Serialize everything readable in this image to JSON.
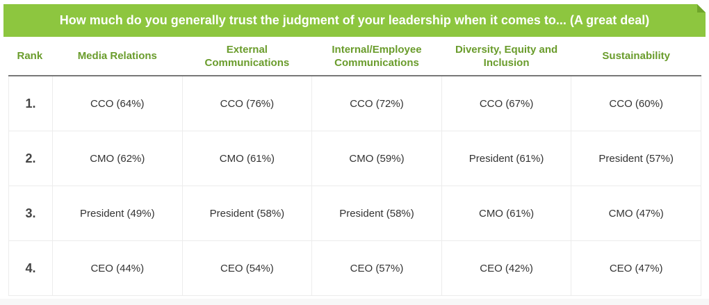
{
  "title": "How much do you generally trust the judgment of your leadership when it comes to... (A great deal)",
  "colors": {
    "banner": "#8dc63f",
    "header_text": "#6a9c2c"
  },
  "columns": [
    "Rank",
    "Media Relations",
    "External Communications",
    "Internal/Employee Communications",
    "Diversity, Equity and Inclusion",
    "Sustainability"
  ],
  "rows": [
    [
      "1.",
      "CCO (64%)",
      "CCO (76%)",
      "CCO (72%)",
      "CCO (67%)",
      "CCO (60%)"
    ],
    [
      "2.",
      "CMO (62%)",
      "CMO (61%)",
      "CMO (59%)",
      "President (61%)",
      "President (57%)"
    ],
    [
      "3.",
      "President (49%)",
      "President (58%)",
      "President (58%)",
      "CMO (61%)",
      "CMO (47%)"
    ],
    [
      "4.",
      "CEO (44%)",
      "CEO (54%)",
      "CEO (57%)",
      "CEO (42%)",
      "CEO (47%)"
    ]
  ]
}
